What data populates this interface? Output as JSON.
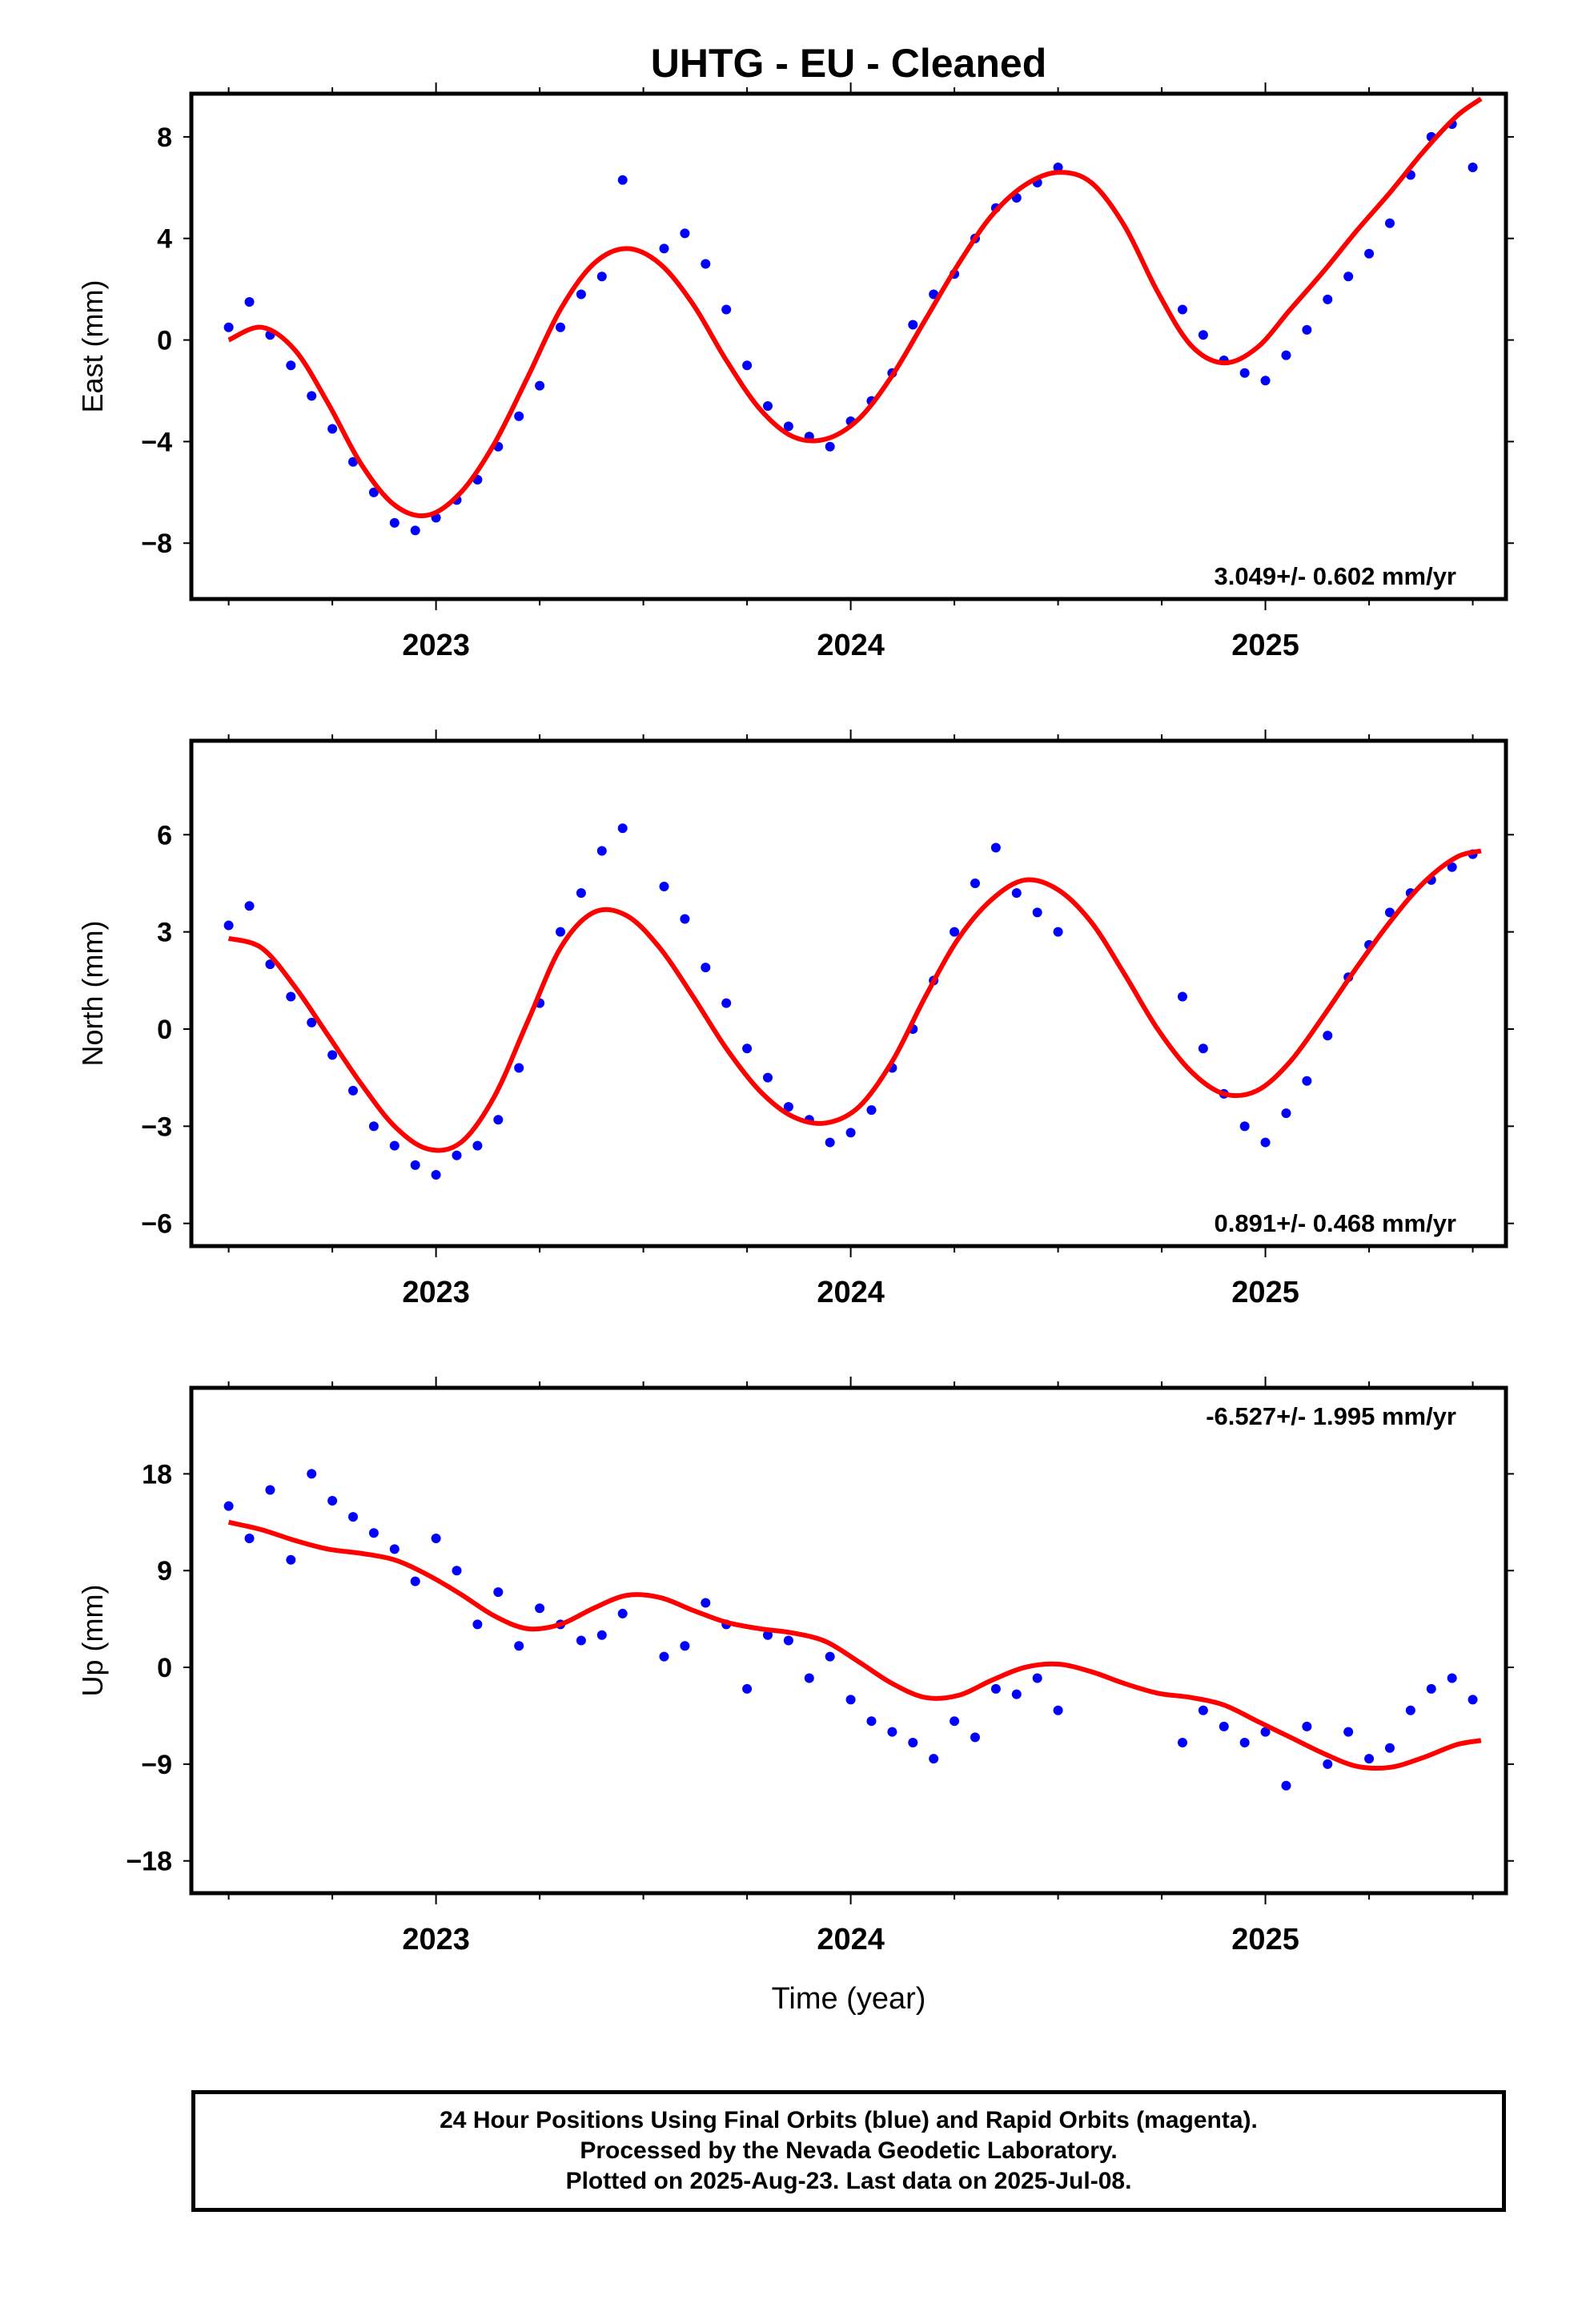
{
  "title": "UHTG  - EU - Cleaned",
  "x_axis_label": "Time (year)",
  "footer": {
    "line1": "24 Hour Positions Using Final Orbits (blue) and Rapid Orbits (magenta).",
    "line2": "Processed by the Nevada Geodetic Laboratory.",
    "line3": "Plotted on 2025-Aug-23. Last data on 2025-Jul-08."
  },
  "colors": {
    "data_points": "#0000ff",
    "model_fit": "#ff0000",
    "frame": "#000000"
  },
  "chart_data": [
    {
      "type": "scatter",
      "name": "East",
      "ylabel": "East (mm)",
      "xlim": [
        2022.41,
        2025.58
      ],
      "ylim": [
        -10.2,
        9.7
      ],
      "xticks": [
        2023,
        2024,
        2025
      ],
      "yticks": [
        -8,
        -4,
        0,
        4,
        8
      ],
      "rate_label": "3.049+/- 0.602 mm/yr",
      "rate_position": "bottom-right",
      "grid": false,
      "model": {
        "type": "line",
        "x": [
          2022.5,
          2022.58,
          2022.66,
          2022.74,
          2022.82,
          2022.9,
          2022.98,
          2023.06,
          2023.14,
          2023.22,
          2023.3,
          2023.38,
          2023.46,
          2023.54,
          2023.62,
          2023.7,
          2023.78,
          2023.86,
          2023.94,
          2024.02,
          2024.1,
          2024.18,
          2024.26,
          2024.34,
          2024.42,
          2024.5,
          2024.58,
          2024.66,
          2024.74,
          2024.82,
          2024.9,
          2024.98,
          2025.06,
          2025.14,
          2025.22,
          2025.3,
          2025.38,
          2025.46,
          2025.52
        ],
        "y": [
          0.0,
          0.5,
          -0.4,
          -2.5,
          -4.9,
          -6.5,
          -6.9,
          -6.0,
          -4.1,
          -1.5,
          1.2,
          3.0,
          3.6,
          3.0,
          1.4,
          -0.8,
          -2.7,
          -3.8,
          -3.9,
          -3.1,
          -1.4,
          0.8,
          3.0,
          4.9,
          6.1,
          6.6,
          6.2,
          4.5,
          1.9,
          -0.2,
          -0.9,
          -0.3,
          1.2,
          2.7,
          4.3,
          5.8,
          7.4,
          8.8,
          9.5
        ]
      },
      "points": {
        "x": [
          2022.5,
          2022.55,
          2022.6,
          2022.65,
          2022.7,
          2022.75,
          2022.8,
          2022.85,
          2022.9,
          2022.95,
          2023.0,
          2023.05,
          2023.1,
          2023.15,
          2023.2,
          2023.25,
          2023.3,
          2023.35,
          2023.4,
          2023.45,
          2023.55,
          2023.6,
          2023.65,
          2023.7,
          2023.75,
          2023.8,
          2023.85,
          2023.9,
          2023.95,
          2024.0,
          2024.05,
          2024.1,
          2024.15,
          2024.2,
          2024.25,
          2024.3,
          2024.35,
          2024.4,
          2024.45,
          2024.5,
          2024.8,
          2024.85,
          2024.9,
          2024.95,
          2025.0,
          2025.05,
          2025.1,
          2025.15,
          2025.2,
          2025.25,
          2025.3,
          2025.35,
          2025.4,
          2025.45,
          2025.5
        ],
        "y": [
          0.5,
          1.5,
          0.2,
          -1.0,
          -2.2,
          -3.5,
          -4.8,
          -6.0,
          -7.2,
          -7.5,
          -7.0,
          -6.3,
          -5.5,
          -4.2,
          -3.0,
          -1.8,
          0.5,
          1.8,
          2.5,
          6.3,
          3.6,
          4.2,
          3.0,
          1.2,
          -1.0,
          -2.6,
          -3.4,
          -3.8,
          -4.2,
          -3.2,
          -2.4,
          -1.3,
          0.6,
          1.8,
          2.6,
          4.0,
          5.2,
          5.6,
          6.2,
          6.8,
          1.2,
          0.2,
          -0.8,
          -1.3,
          -1.6,
          -0.6,
          0.4,
          1.6,
          2.5,
          3.4,
          4.6,
          6.5,
          8.0,
          8.5,
          6.8
        ]
      }
    },
    {
      "type": "scatter",
      "name": "North",
      "ylabel": "North (mm)",
      "xlim": [
        2022.41,
        2025.58
      ],
      "ylim": [
        -6.7,
        8.9
      ],
      "xticks": [
        2023,
        2024,
        2025
      ],
      "yticks": [
        -6,
        -3,
        0,
        3,
        6
      ],
      "rate_label": "0.891+/- 0.468 mm/yr",
      "rate_position": "bottom-right",
      "grid": false,
      "model": {
        "type": "line",
        "x": [
          2022.5,
          2022.58,
          2022.66,
          2022.74,
          2022.82,
          2022.9,
          2022.98,
          2023.06,
          2023.14,
          2023.22,
          2023.3,
          2023.38,
          2023.46,
          2023.54,
          2023.62,
          2023.7,
          2023.78,
          2023.86,
          2023.94,
          2024.02,
          2024.1,
          2024.18,
          2024.26,
          2024.34,
          2024.42,
          2024.5,
          2024.58,
          2024.66,
          2024.74,
          2024.82,
          2024.9,
          2024.98,
          2025.06,
          2025.14,
          2025.22,
          2025.3,
          2025.38,
          2025.46,
          2025.52
        ],
        "y": [
          2.8,
          2.5,
          1.3,
          -0.2,
          -1.7,
          -3.0,
          -3.7,
          -3.5,
          -2.1,
          0.2,
          2.5,
          3.6,
          3.5,
          2.5,
          1.0,
          -0.6,
          -1.9,
          -2.7,
          -2.9,
          -2.4,
          -1.0,
          1.0,
          2.8,
          4.0,
          4.6,
          4.3,
          3.3,
          1.7,
          0.0,
          -1.3,
          -2.0,
          -1.9,
          -1.0,
          0.4,
          1.9,
          3.3,
          4.5,
          5.3,
          5.5
        ]
      },
      "points": {
        "x": [
          2022.5,
          2022.55,
          2022.6,
          2022.65,
          2022.7,
          2022.75,
          2022.8,
          2022.85,
          2022.9,
          2022.95,
          2023.0,
          2023.05,
          2023.1,
          2023.15,
          2023.2,
          2023.25,
          2023.3,
          2023.35,
          2023.4,
          2023.45,
          2023.55,
          2023.6,
          2023.65,
          2023.7,
          2023.75,
          2023.8,
          2023.85,
          2023.9,
          2023.95,
          2024.0,
          2024.05,
          2024.1,
          2024.15,
          2024.2,
          2024.25,
          2024.3,
          2024.35,
          2024.4,
          2024.45,
          2024.5,
          2024.8,
          2024.85,
          2024.9,
          2024.95,
          2025.0,
          2025.05,
          2025.1,
          2025.15,
          2025.2,
          2025.25,
          2025.3,
          2025.35,
          2025.4,
          2025.45,
          2025.5
        ],
        "y": [
          3.2,
          3.8,
          2.0,
          1.0,
          0.2,
          -0.8,
          -1.9,
          -3.0,
          -3.6,
          -4.2,
          -4.5,
          -3.9,
          -3.6,
          -2.8,
          -1.2,
          0.8,
          3.0,
          4.2,
          5.5,
          6.2,
          4.4,
          3.4,
          1.9,
          0.8,
          -0.6,
          -1.5,
          -2.4,
          -2.8,
          -3.5,
          -3.2,
          -2.5,
          -1.2,
          0.0,
          1.5,
          3.0,
          4.5,
          5.6,
          4.2,
          3.6,
          3.0,
          1.0,
          -0.6,
          -2.0,
          -3.0,
          -3.5,
          -2.6,
          -1.6,
          -0.2,
          1.6,
          2.6,
          3.6,
          4.2,
          4.6,
          5.0,
          5.4
        ]
      }
    },
    {
      "type": "scatter",
      "name": "Up",
      "ylabel": "Up (mm)",
      "xlabel": "Time (year)",
      "xlim": [
        2022.41,
        2025.58
      ],
      "ylim": [
        -21,
        26
      ],
      "xticks": [
        2023,
        2024,
        2025
      ],
      "yticks": [
        -18,
        -9,
        0,
        9,
        18
      ],
      "rate_label": "-6.527+/- 1.995 mm/yr",
      "rate_position": "top-right",
      "grid": false,
      "model": {
        "type": "line",
        "x": [
          2022.5,
          2022.58,
          2022.66,
          2022.74,
          2022.82,
          2022.9,
          2022.98,
          2023.06,
          2023.14,
          2023.22,
          2023.3,
          2023.38,
          2023.46,
          2023.54,
          2023.62,
          2023.7,
          2023.78,
          2023.86,
          2023.94,
          2024.02,
          2024.1,
          2024.18,
          2024.26,
          2024.34,
          2024.42,
          2024.5,
          2024.58,
          2024.66,
          2024.74,
          2024.82,
          2024.9,
          2024.98,
          2025.06,
          2025.14,
          2025.22,
          2025.3,
          2025.38,
          2025.46,
          2025.52
        ],
        "y": [
          13.5,
          12.8,
          11.8,
          11.0,
          10.6,
          10.0,
          8.6,
          6.8,
          4.8,
          3.6,
          4.0,
          5.5,
          6.7,
          6.5,
          5.3,
          4.2,
          3.6,
          3.2,
          2.4,
          0.5,
          -1.5,
          -2.8,
          -2.6,
          -1.2,
          0.0,
          0.3,
          -0.4,
          -1.5,
          -2.4,
          -2.8,
          -3.5,
          -5.0,
          -6.5,
          -8.0,
          -9.2,
          -9.3,
          -8.4,
          -7.2,
          -6.8
        ]
      },
      "points": {
        "x": [
          2022.5,
          2022.55,
          2022.6,
          2022.65,
          2022.7,
          2022.75,
          2022.8,
          2022.85,
          2022.9,
          2022.95,
          2023.0,
          2023.05,
          2023.1,
          2023.15,
          2023.2,
          2023.25,
          2023.3,
          2023.35,
          2023.4,
          2023.45,
          2023.55,
          2023.6,
          2023.65,
          2023.7,
          2023.75,
          2023.8,
          2023.85,
          2023.9,
          2023.95,
          2024.0,
          2024.05,
          2024.1,
          2024.15,
          2024.2,
          2024.25,
          2024.3,
          2024.35,
          2024.4,
          2024.45,
          2024.5,
          2024.8,
          2024.85,
          2024.9,
          2024.95,
          2025.0,
          2025.05,
          2025.1,
          2025.15,
          2025.2,
          2025.25,
          2025.3,
          2025.35,
          2025.4,
          2025.45,
          2025.5
        ],
        "y": [
          15.0,
          12.0,
          16.5,
          10.0,
          18.0,
          15.5,
          14.0,
          12.5,
          11.0,
          8.0,
          12.0,
          9.0,
          4.0,
          7.0,
          2.0,
          5.5,
          4.0,
          2.5,
          3.0,
          5.0,
          1.0,
          2.0,
          6.0,
          4.0,
          -2.0,
          3.0,
          2.5,
          -1.0,
          1.0,
          -3.0,
          -5.0,
          -6.0,
          -7.0,
          -8.5,
          -5.0,
          -6.5,
          -2.0,
          -2.5,
          -1.0,
          -4.0,
          -7.0,
          -4.0,
          -5.5,
          -7.0,
          -6.0,
          -11.0,
          -5.5,
          -9.0,
          -6.0,
          -8.5,
          -7.5,
          -4.0,
          -2.0,
          -1.0,
          -3.0
        ]
      }
    }
  ]
}
